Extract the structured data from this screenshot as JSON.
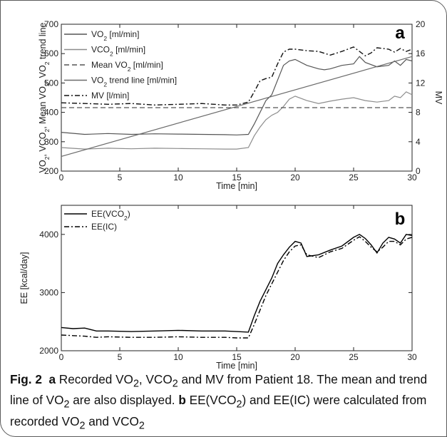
{
  "chart_data": [
    {
      "type": "line",
      "panel": "a",
      "xlabel": "Time [min]",
      "ylabel": "VO2, VCO2, Mean VO2, VO2 trend line",
      "y2label": "MV",
      "xlim": [
        0,
        30
      ],
      "ylim": [
        200,
        700
      ],
      "y2lim": [
        0,
        20
      ],
      "xticks": [
        "0",
        "5",
        "10",
        "15",
        "20",
        "25",
        "30"
      ],
      "yticks": [
        "200",
        "300",
        "400",
        "500",
        "600",
        "700"
      ],
      "y2ticks": [
        "0",
        "4",
        "8",
        "12",
        "16",
        "20"
      ],
      "legend_position": "top-left",
      "series": [
        {
          "name": "VO2 [ml/min]",
          "axis": "left",
          "color": "#555555",
          "dash": "solid",
          "x": [
            0,
            2,
            4,
            6,
            8,
            10,
            12,
            14,
            15,
            16,
            16.5,
            17,
            17.5,
            18,
            18.5,
            19,
            19.5,
            20,
            21,
            22,
            22.5,
            23,
            24,
            25,
            25.5,
            26,
            27,
            28,
            28.5,
            29,
            29.5,
            30
          ],
          "y": [
            332,
            325,
            328,
            325,
            327,
            326,
            325,
            324,
            323,
            325,
            360,
            400,
            440,
            460,
            510,
            560,
            575,
            580,
            560,
            548,
            545,
            548,
            560,
            565,
            590,
            570,
            555,
            560,
            575,
            560,
            580,
            575
          ]
        },
        {
          "name": "VCO2 [ml/min]",
          "axis": "left",
          "color": "#8c8c8c",
          "dash": "solid",
          "x": [
            0,
            2,
            4,
            6,
            8,
            10,
            12,
            14,
            15,
            16,
            16.5,
            17,
            17.5,
            18,
            18.5,
            19,
            19.5,
            20,
            21,
            22,
            23,
            24,
            25,
            26,
            27,
            28,
            28.5,
            29,
            29.5,
            30
          ],
          "y": [
            280,
            275,
            278,
            276,
            278,
            277,
            276,
            275,
            275,
            280,
            320,
            350,
            375,
            390,
            400,
            420,
            445,
            455,
            440,
            430,
            438,
            445,
            450,
            440,
            435,
            440,
            455,
            450,
            470,
            460
          ]
        },
        {
          "name": "Mean VO2 [ml/min]",
          "axis": "left",
          "color": "#555555",
          "dash": "dashed",
          "x": [
            0,
            30
          ],
          "y": [
            416,
            416
          ]
        },
        {
          "name": "VO2 trend line [ml/min]",
          "axis": "left",
          "color": "#6a6a6a",
          "dash": "solid",
          "x": [
            0,
            30
          ],
          "y": [
            250,
            590
          ]
        },
        {
          "name": "MV [l/min]",
          "axis": "right",
          "color": "#111111",
          "dash": "dashdot",
          "x": [
            0,
            2,
            4,
            6,
            8,
            10,
            12,
            14,
            15,
            16,
            16.5,
            17,
            17.5,
            18,
            18.5,
            19,
            19.5,
            20,
            21,
            22,
            23,
            24,
            25,
            25.5,
            26,
            26.5,
            27,
            28,
            28.5,
            29,
            29.5,
            30
          ],
          "y": [
            9.3,
            9.2,
            9.1,
            9.2,
            9.0,
            9.1,
            9.2,
            9.0,
            9.0,
            9.4,
            10.8,
            12.3,
            12.6,
            12.8,
            14.6,
            16.2,
            16.6,
            16.6,
            16.4,
            16.3,
            15.8,
            16.3,
            16.9,
            16.3,
            15.7,
            16.1,
            16.8,
            16.6,
            16.2,
            16.7,
            16.3,
            16.6
          ]
        }
      ]
    },
    {
      "type": "line",
      "panel": "b",
      "xlabel": "Time [min]",
      "ylabel": "EE [kcal/day]",
      "xlim": [
        0,
        30
      ],
      "ylim": [
        2000,
        4500
      ],
      "xticks": [
        "0",
        "5",
        "10",
        "15",
        "20",
        "25",
        "30"
      ],
      "yticks": [
        "2000",
        "3000",
        "4000"
      ],
      "legend_position": "top-left",
      "series": [
        {
          "name": "EE(VCO2)",
          "color": "#000000",
          "dash": "solid",
          "x": [
            0,
            1,
            2,
            3,
            4,
            6,
            8,
            10,
            12,
            14,
            15,
            16,
            16.5,
            17,
            17.5,
            18,
            18.5,
            19,
            19.5,
            20,
            20.5,
            21,
            22,
            23,
            24,
            25,
            25.5,
            26,
            26.5,
            27,
            27.5,
            28,
            28.5,
            29,
            29.5,
            30
          ],
          "y": [
            2400,
            2380,
            2390,
            2340,
            2340,
            2330,
            2340,
            2350,
            2340,
            2340,
            2330,
            2320,
            2600,
            2850,
            3050,
            3250,
            3500,
            3650,
            3780,
            3880,
            3850,
            3620,
            3650,
            3730,
            3800,
            3950,
            4000,
            3930,
            3820,
            3680,
            3850,
            3950,
            3920,
            3850,
            4000,
            3980
          ]
        },
        {
          "name": "EE(IC)",
          "color": "#000000",
          "dash": "dashdot",
          "x": [
            0,
            1,
            2,
            3,
            4,
            6,
            8,
            10,
            12,
            14,
            15,
            16,
            16.5,
            17,
            17.5,
            18,
            18.5,
            19,
            19.5,
            20,
            20.5,
            21,
            22,
            23,
            24,
            25,
            25.5,
            26,
            26.5,
            27,
            27.5,
            28,
            28.5,
            29,
            29.5,
            30
          ],
          "y": [
            2270,
            2260,
            2250,
            2230,
            2240,
            2230,
            2230,
            2240,
            2230,
            2230,
            2220,
            2220,
            2450,
            2700,
            2950,
            3150,
            3350,
            3550,
            3700,
            3800,
            3820,
            3650,
            3600,
            3700,
            3760,
            3900,
            3960,
            3880,
            3780,
            3700,
            3780,
            3880,
            3880,
            3820,
            3920,
            3950
          ]
        }
      ]
    }
  ],
  "caption": {
    "fig_label": "Fig. 2",
    "panel_a": "a",
    "text_a_1": " Recorded VO",
    "sub_2a": "2",
    "text_a_2": ", VCO",
    "sub_2b": "2",
    "text_a_3": " and MV from Patient 18. The mean and trend line of VO",
    "sub_2c": "2",
    "text_a_4": " are also displayed. ",
    "panel_b": "b",
    "text_b_1": " EE(VCO",
    "sub_2d": "2",
    "text_b_2": ") and EE(IC) were calculated from recorded VO",
    "sub_2e": "2",
    "text_b_3": " and VCO",
    "sub_2f": "2"
  }
}
